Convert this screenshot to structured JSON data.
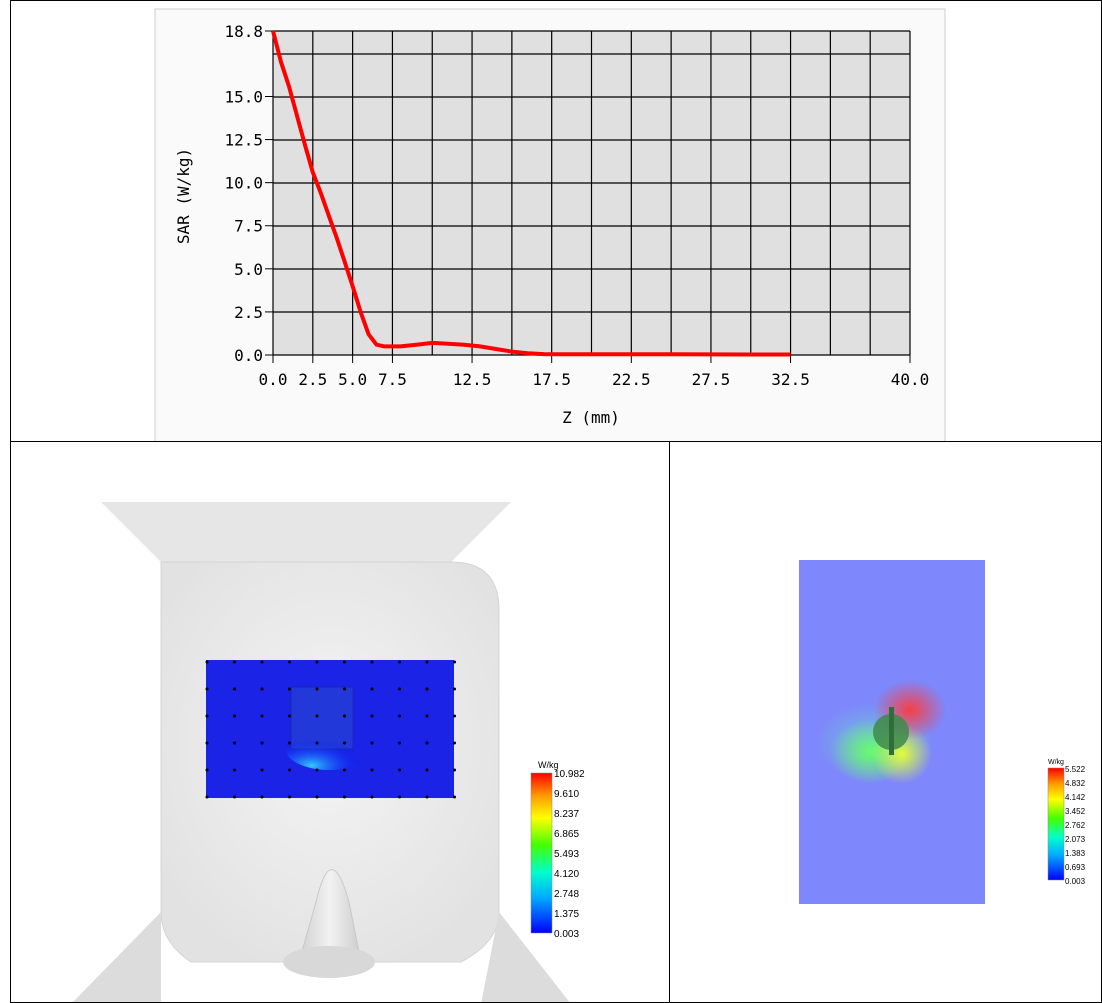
{
  "chart_data": [
    {
      "type": "line",
      "xlabel": "Z (mm)",
      "ylabel": "SAR (W/kg)",
      "xlim": [
        0,
        40
      ],
      "ylim": [
        0,
        18.8
      ],
      "x_ticks": [
        0.0,
        2.5,
        5.0,
        7.5,
        12.5,
        17.5,
        22.5,
        27.5,
        32.5,
        40.0
      ],
      "x_tick_labels": [
        "0.0",
        "2.5",
        "5.0",
        "7.5",
        "12.5",
        "17.5",
        "22.5",
        "27.5",
        "32.5",
        "40.0"
      ],
      "y_ticks": [
        0.0,
        2.5,
        5.0,
        7.5,
        10.0,
        12.5,
        15.0,
        18.8
      ],
      "y_tick_labels": [
        "0.0",
        "2.5",
        "5.0",
        "7.5",
        "10.0",
        "12.5",
        "15.0",
        "18.8"
      ],
      "grid": true,
      "series": [
        {
          "color": "#ff0000",
          "x": [
            0,
            0.5,
            1,
            1.5,
            2,
            2.5,
            3,
            3.5,
            4,
            4.5,
            5,
            5.5,
            6,
            6.5,
            7,
            7.5,
            8,
            9,
            10,
            11,
            12,
            13,
            14,
            15,
            16,
            17,
            18,
            20,
            25,
            30,
            32.5
          ],
          "y": [
            18.8,
            17.0,
            15.6,
            13.9,
            12.2,
            10.6,
            9.4,
            8.1,
            6.8,
            5.4,
            4.0,
            2.5,
            1.2,
            0.6,
            0.5,
            0.5,
            0.5,
            0.6,
            0.7,
            0.65,
            0.6,
            0.5,
            0.35,
            0.2,
            0.1,
            0.05,
            0.04,
            0.04,
            0.04,
            0.03,
            0.03
          ]
        }
      ]
    },
    {
      "type": "heatmap",
      "colorbar": {
        "unit": "W/kg",
        "labels": [
          "10.982",
          "9.610",
          "8.237",
          "6.865",
          "5.493",
          "4.120",
          "2.748",
          "1.375",
          "0.003"
        ]
      }
    },
    {
      "type": "heatmap",
      "colorbar": {
        "unit": "W/kg",
        "labels": [
          "5.522",
          "4.832",
          "4.142",
          "3.452",
          "2.762",
          "2.073",
          "1.383",
          "0.693",
          "0.003"
        ]
      }
    }
  ]
}
